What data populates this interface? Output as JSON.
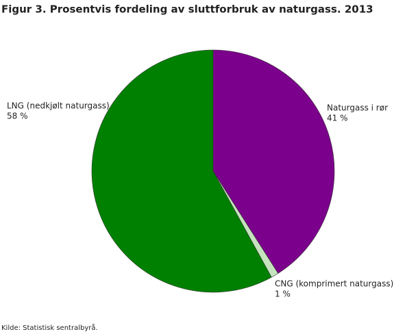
{
  "chart_data": {
    "type": "pie",
    "title": "Figur 3. Prosentvis fordeling av sluttforbruk av naturgass. 2013",
    "categories": [
      "Naturgass i rør",
      "CNG (komprimert naturgass)",
      "LNG (nedkjølt naturgass)"
    ],
    "values": [
      41,
      1,
      58
    ],
    "value_labels": [
      "41 %",
      "1 %",
      "58 %"
    ],
    "colors": [
      "#7b008b",
      "#c5e3bd",
      "#008000"
    ],
    "source": "Kilde: Statistisk sentralbyrå."
  }
}
